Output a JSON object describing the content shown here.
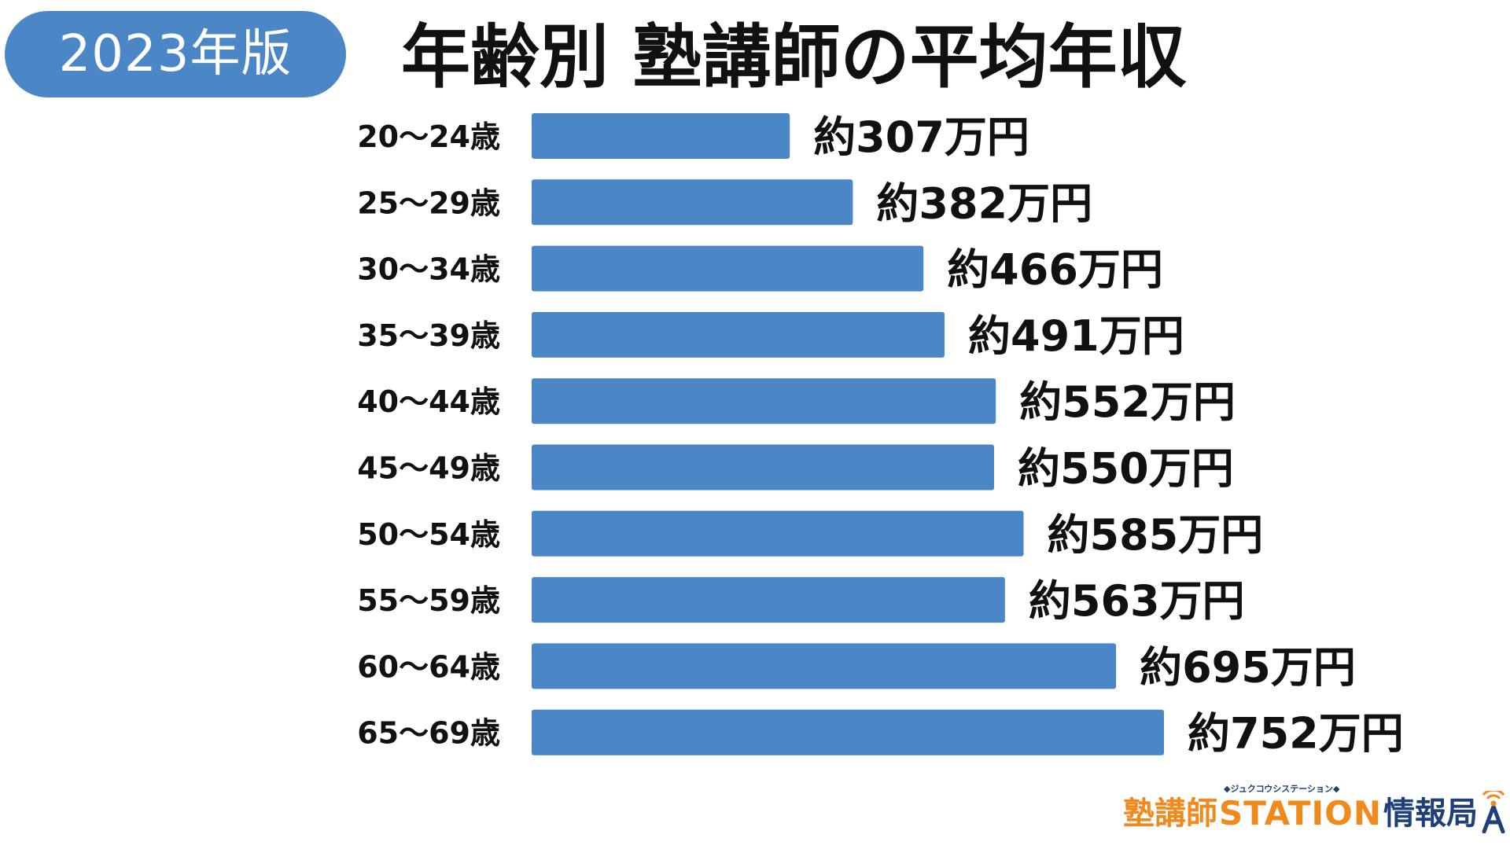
{
  "header": {
    "year_badge": "2023年版",
    "title": "年齢別 塾講師の平均年収"
  },
  "chart_data": {
    "type": "bar",
    "orientation": "horizontal",
    "title": "年齢別 塾講師の平均年収",
    "categories": [
      "20〜24歳",
      "25〜29歳",
      "30〜34歳",
      "35〜39歳",
      "40〜44歳",
      "45〜49歳",
      "50〜54歳",
      "55〜59歳",
      "60〜64歳",
      "65〜69歳"
    ],
    "values": [
      307,
      382,
      466,
      491,
      552,
      550,
      585,
      563,
      695,
      752
    ],
    "value_labels": [
      "約307万円",
      "約382万円",
      "約466万円",
      "約491万円",
      "約552万円",
      "約550万円",
      "約585万円",
      "約563万円",
      "約695万円",
      "約752万円"
    ],
    "unit": "万円",
    "xlim": [
      0,
      752
    ],
    "grid": false,
    "bar_color": "#4b86c7"
  },
  "logo": {
    "part1": "塾講師",
    "part2": "STATION",
    "kana": "◆ジュクコウシステーション◆",
    "part3": "情報局",
    "colors": {
      "orange": "#f08a1c",
      "navy": "#1f3f77"
    }
  }
}
